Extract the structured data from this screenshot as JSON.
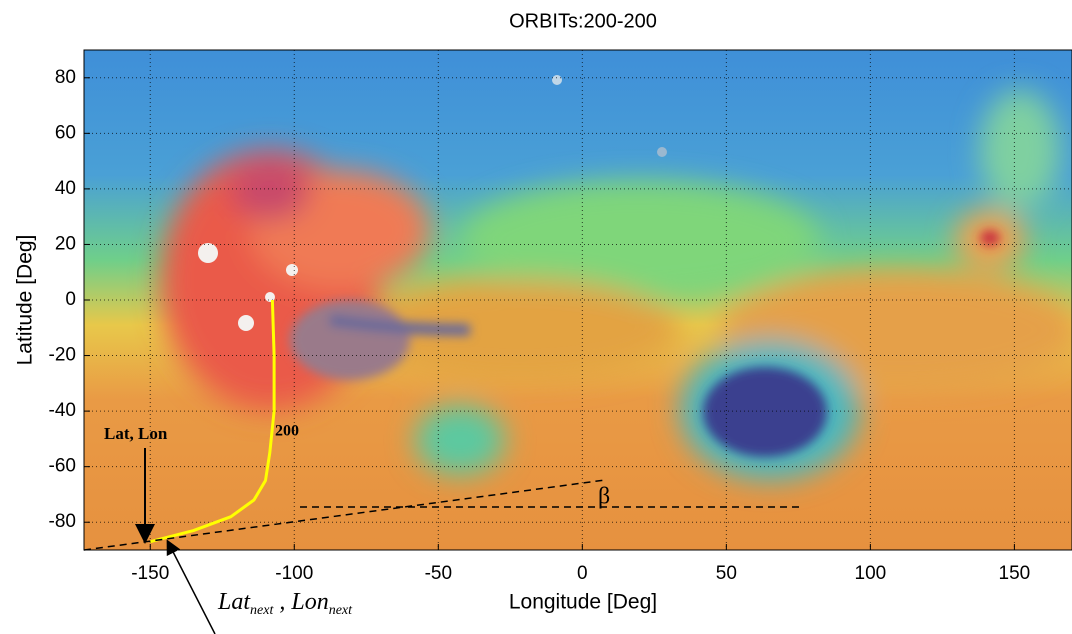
{
  "chart_data": {
    "type": "line",
    "title": "ORBITs:200-200",
    "x_label": "Longitude [Deg]",
    "y_label": "Latitude [Deg]",
    "x": [
      -107.6,
      -107,
      -107,
      -108.5,
      -110,
      -114,
      -122,
      -135,
      -150
    ],
    "series": [
      {
        "color": "#ffff00",
        "values": [
          0,
          -20,
          -40,
          -55,
          -65,
          -72,
          -78,
          -83,
          -87
        ]
      }
    ],
    "xlim": [
      -173,
      170
    ],
    "ylim": [
      -90,
      90
    ],
    "xticks": [
      -150,
      -100,
      -50,
      0,
      50,
      100,
      150
    ],
    "yticks": [
      -80,
      -60,
      -40,
      -20,
      0,
      20,
      40,
      60,
      80
    ],
    "grid": true,
    "annotations": {
      "orbit_label": "200",
      "position_label": "Lat, Lon",
      "angle_label": "β",
      "next_label": {
        "lat": "Lat",
        "lat_sub": "next",
        "sep": " , ",
        "lon": "Lon",
        "lon_sub": "next"
      }
    }
  }
}
